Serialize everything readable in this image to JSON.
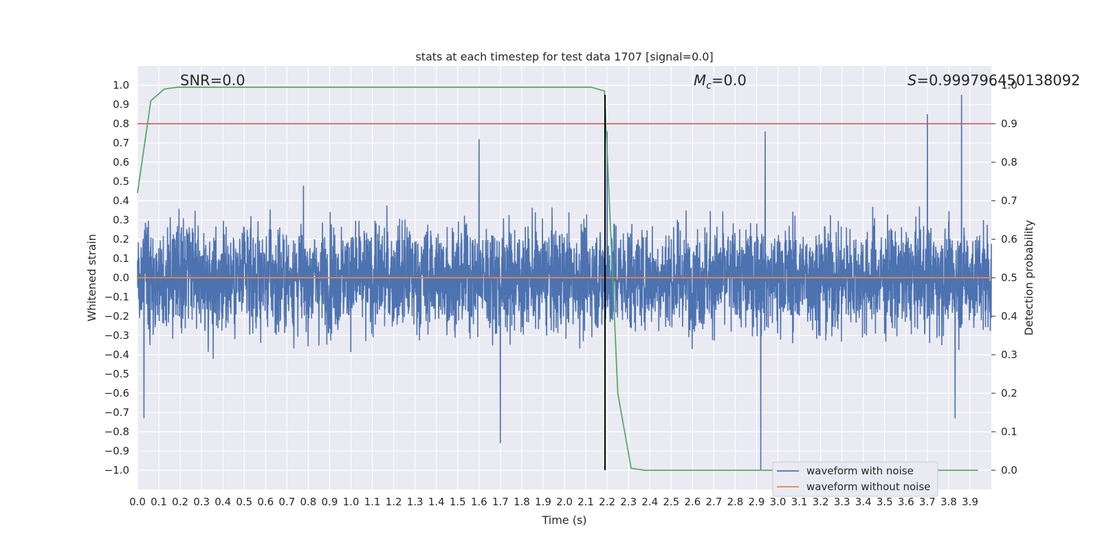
{
  "chart_data": {
    "type": "line",
    "title": "stats at each timestep for test data 1707 [signal=0.0]",
    "xlabel": "Time (s)",
    "ylabel": "Whitened strain",
    "y2label": "Detection probability",
    "xlim": [
      0.0,
      4.0
    ],
    "ylim": [
      -1.1,
      1.1
    ],
    "y2lim": [
      -0.05,
      1.05
    ],
    "x_ticks": [
      "0.0",
      "0.1",
      "0.2",
      "0.3",
      "0.4",
      "0.5",
      "0.6",
      "0.7",
      "0.8",
      "0.9",
      "1.0",
      "1.1",
      "1.2",
      "1.3",
      "1.4",
      "1.5",
      "1.6",
      "1.7",
      "1.8",
      "1.9",
      "2.0",
      "2.1",
      "2.2",
      "2.3",
      "2.4",
      "2.5",
      "2.6",
      "2.7",
      "2.8",
      "2.9",
      "3.0",
      "3.1",
      "3.2",
      "3.3",
      "3.4",
      "3.5",
      "3.6",
      "3.7",
      "3.8",
      "3.9"
    ],
    "y_ticks": [
      "1.0",
      "0.9",
      "0.8",
      "0.7",
      "0.6",
      "0.5",
      "0.4",
      "0.3",
      "0.2",
      "0.1",
      "0.0",
      "-0.1",
      "-0.2",
      "-0.3",
      "-0.4",
      "-0.5",
      "-0.6",
      "-0.7",
      "-0.8",
      "-0.9",
      "-1.0"
    ],
    "y2_ticks": [
      "1.0",
      "0.9",
      "0.8",
      "0.7",
      "0.6",
      "0.5",
      "0.4",
      "0.3",
      "0.2",
      "0.1",
      "0.0"
    ],
    "grid": true,
    "legend_position": "bottom-right",
    "annotations": {
      "snr": "SNR=0.0",
      "mc": "=0.0",
      "mc_symbol": "M",
      "mc_sub": "c",
      "s": "=0.999796450138092",
      "s_symbol": "S"
    },
    "series": [
      {
        "name": "waveform with noise",
        "color": "#4c72b0",
        "axis": "left",
        "description_points": {
          "x_range": [
            0.0,
            4.0
          ],
          "amplitude_typical": 0.35,
          "notable_spikes": [
            {
              "x": 0.03,
              "y": -0.73
            },
            {
              "x": 1.7,
              "y": -0.86
            },
            {
              "x": 1.6,
              "y": 0.72
            },
            {
              "x": 2.2,
              "y": 0.76
            },
            {
              "x": 2.92,
              "y": -1.0
            },
            {
              "x": 2.94,
              "y": 0.76
            },
            {
              "x": 3.7,
              "y": 0.85
            },
            {
              "x": 3.86,
              "y": 0.95
            },
            {
              "x": 3.83,
              "y": -0.73
            }
          ]
        }
      },
      {
        "name": "waveform without noise",
        "color": "#dd8452",
        "axis": "left",
        "x": [
          0.0,
          4.0
        ],
        "y": [
          0.0,
          0.0
        ]
      },
      {
        "name": "",
        "color": "#55a868",
        "axis": "right",
        "x": [
          0.0,
          0.0625,
          0.125,
          0.1875,
          0.25,
          0.5,
          1.0,
          1.5,
          2.0,
          2.125,
          2.1875,
          2.25,
          2.3125,
          2.375,
          2.5,
          3.0,
          3.5,
          3.9375
        ],
        "y": [
          0.72,
          0.96,
          0.99,
          0.995,
          0.995,
          0.995,
          0.995,
          0.995,
          0.995,
          0.995,
          0.985,
          0.2,
          0.005,
          0.0,
          0.0,
          0.0,
          0.0,
          0.0
        ]
      }
    ],
    "threshold_line": {
      "axis": "right",
      "y": 0.9,
      "color": "#c44e52"
    },
    "vertical_line": {
      "x": 2.19,
      "y_from": -1.0,
      "y_to": 0.95,
      "color": "#000000"
    }
  }
}
